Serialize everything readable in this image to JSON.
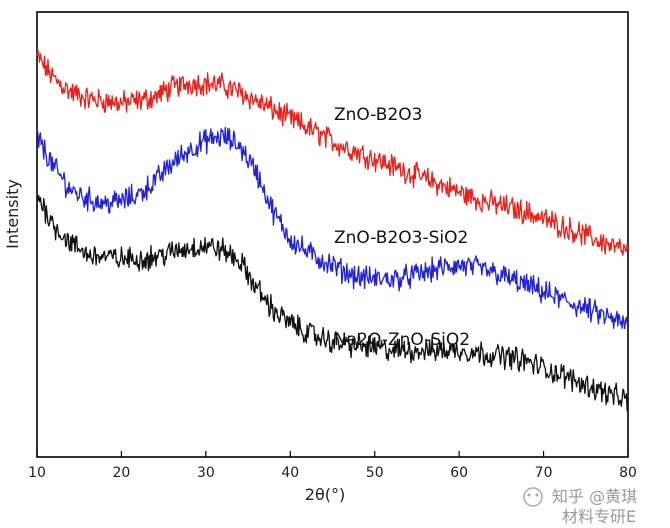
{
  "chart_data": {
    "type": "line",
    "title": "",
    "xlabel": "2θ(°)",
    "ylabel": "Intensity",
    "xlim": [
      10,
      80
    ],
    "ylim": [
      0,
      100
    ],
    "xticks": [
      10,
      20,
      30,
      40,
      50,
      60,
      70,
      80
    ],
    "grid": false,
    "legend": "inline-labels",
    "x": [
      10,
      12,
      14,
      16,
      18,
      20,
      22,
      24,
      26,
      28,
      30,
      32,
      34,
      36,
      38,
      40,
      42,
      44,
      46,
      48,
      50,
      52,
      54,
      56,
      58,
      60,
      62,
      64,
      66,
      68,
      70,
      72,
      74,
      76,
      78,
      80
    ],
    "series": [
      {
        "name": "ZnO-B2O3",
        "color": "#e8221b",
        "values": [
          90,
          85,
          82,
          80.5,
          80,
          79.5,
          80,
          81,
          83,
          84,
          84,
          83.5,
          82,
          80,
          78,
          76,
          74,
          72,
          70,
          68.5,
          67,
          65.5,
          64,
          62.5,
          61,
          59.5,
          58,
          57,
          56,
          55,
          53.5,
          52,
          50.5,
          49,
          47.5,
          46
        ]
      },
      {
        "name": "ZnO-B2O3-SiO2",
        "color": "#1f22d6",
        "values": [
          72,
          65,
          60,
          58,
          57,
          57.5,
          59,
          62,
          66,
          69,
          71,
          72,
          70,
          64,
          55,
          49,
          46,
          44,
          42,
          40.5,
          40,
          40,
          40.5,
          41.5,
          42.5,
          43,
          42.5,
          41.5,
          40,
          38.5,
          37,
          35.5,
          34,
          32.5,
          31,
          29.5
        ]
      },
      {
        "name": "Na2O-ZnO-SiO2",
        "color": "#111111",
        "values": [
          59,
          52,
          48,
          45.5,
          45,
          44.5,
          44.5,
          45,
          46,
          47,
          47.5,
          46.5,
          44,
          38,
          33,
          30,
          28,
          26.5,
          25.5,
          25,
          24.5,
          24,
          24,
          24,
          24,
          24,
          23.5,
          23,
          22.5,
          21.5,
          20,
          18.5,
          17,
          15.5,
          14,
          12.5
        ]
      }
    ]
  },
  "annotations": {
    "zno_b2o3": "ZnO-B2O3",
    "zno_b2o3_sio2": "ZnO-B2O3-SiO2",
    "na2o_zno_sio2": "Na2O-ZnO-SiO2"
  },
  "watermark": {
    "line1": "知乎 @黄琪",
    "line2": "材料专研E"
  }
}
